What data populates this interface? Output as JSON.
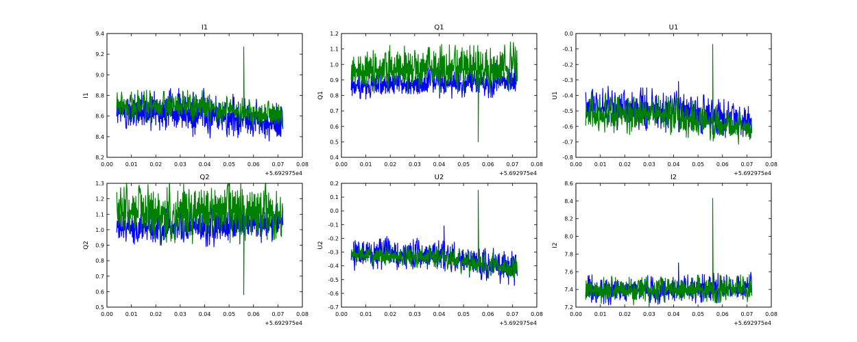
{
  "figure": {
    "background": "#ffffff",
    "series_colors": {
      "blue": "#0000ff",
      "green": "#008000"
    }
  },
  "chart_data": [
    {
      "type": "line",
      "title": "I1",
      "xlabel": "",
      "ylabel": "I1",
      "x_offset_label": "+5.692975e4",
      "xlim": [
        0.0,
        0.08
      ],
      "ylim": [
        8.2,
        9.4
      ],
      "xticks": [
        "0.00",
        "0.01",
        "0.02",
        "0.03",
        "0.04",
        "0.05",
        "0.06",
        "0.07",
        "0.08"
      ],
      "yticks": [
        "8.2",
        "8.4",
        "8.6",
        "8.8",
        "9.0",
        "9.2",
        "9.4"
      ],
      "x_range": [
        0.004,
        0.072
      ],
      "series": [
        {
          "name": "blue",
          "color": "#0000ff",
          "low": [
            8.5,
            8.46,
            8.38
          ],
          "high": [
            8.78,
            8.8,
            8.65
          ],
          "spikes": []
        },
        {
          "name": "green",
          "color": "#008000",
          "low": [
            8.58,
            8.58,
            8.5
          ],
          "high": [
            8.8,
            8.8,
            8.68
          ],
          "spikes": [
            {
              "x": 0.056,
              "y": 9.27
            }
          ]
        }
      ]
    },
    {
      "type": "line",
      "title": "Q1",
      "xlabel": "",
      "ylabel": "Q1",
      "x_offset_label": "+5.692975e4",
      "xlim": [
        0.0,
        0.08
      ],
      "ylim": [
        0.4,
        1.2
      ],
      "xticks": [
        "0.00",
        "0.01",
        "0.02",
        "0.03",
        "0.04",
        "0.05",
        "0.06",
        "0.07",
        "0.08"
      ],
      "yticks": [
        "0.4",
        "0.5",
        "0.6",
        "0.7",
        "0.8",
        "0.9",
        "1.0",
        "1.1",
        "1.2"
      ],
      "x_range": [
        0.004,
        0.072
      ],
      "series": [
        {
          "name": "blue",
          "color": "#0000ff",
          "low": [
            0.8,
            0.8,
            0.82
          ],
          "high": [
            0.93,
            0.95,
            0.98
          ],
          "spikes": [
            {
              "x": 0.042,
              "y": 1.04
            }
          ]
        },
        {
          "name": "green",
          "color": "#008000",
          "low": [
            0.85,
            0.85,
            0.86
          ],
          "high": [
            1.06,
            1.08,
            1.09
          ],
          "spikes": [
            {
              "x": 0.056,
              "y": 0.5
            }
          ]
        }
      ]
    },
    {
      "type": "line",
      "title": "U1",
      "xlabel": "",
      "ylabel": "U1",
      "x_offset_label": "+5.692975e4",
      "xlim": [
        0.0,
        0.08
      ],
      "ylim": [
        -0.8,
        0.0
      ],
      "xticks": [
        "0.00",
        "0.01",
        "0.02",
        "0.03",
        "0.04",
        "0.05",
        "0.06",
        "0.07",
        "0.08"
      ],
      "yticks": [
        "-0.8",
        "-0.7",
        "-0.6",
        "-0.5",
        "-0.4",
        "-0.3",
        "-0.2",
        "-0.1",
        "0.0"
      ],
      "x_range": [
        0.004,
        0.072
      ],
      "series": [
        {
          "name": "blue",
          "color": "#0000ff",
          "low": [
            -0.58,
            -0.6,
            -0.66
          ],
          "high": [
            -0.38,
            -0.4,
            -0.5
          ],
          "spikes": [
            {
              "x": 0.042,
              "y": -0.31
            }
          ]
        },
        {
          "name": "green",
          "color": "#008000",
          "low": [
            -0.62,
            -0.62,
            -0.7
          ],
          "high": [
            -0.42,
            -0.44,
            -0.55
          ],
          "spikes": [
            {
              "x": 0.056,
              "y": -0.07
            }
          ]
        }
      ]
    },
    {
      "type": "line",
      "title": "Q2",
      "xlabel": "",
      "ylabel": "Q2",
      "x_offset_label": "+5.692975e4",
      "xlim": [
        0.0,
        0.08
      ],
      "ylim": [
        0.5,
        1.3
      ],
      "xticks": [
        "0.00",
        "0.01",
        "0.02",
        "0.03",
        "0.04",
        "0.05",
        "0.06",
        "0.07",
        "0.08"
      ],
      "yticks": [
        "0.5",
        "0.6",
        "0.7",
        "0.8",
        "0.9",
        "1.0",
        "1.1",
        "1.2",
        "1.3"
      ],
      "x_range": [
        0.004,
        0.072
      ],
      "series": [
        {
          "name": "blue",
          "color": "#0000ff",
          "low": [
            0.93,
            0.92,
            0.96
          ],
          "high": [
            1.1,
            1.12,
            1.12
          ],
          "spikes": []
        },
        {
          "name": "green",
          "color": "#008000",
          "low": [
            0.96,
            0.96,
            0.98
          ],
          "high": [
            1.24,
            1.26,
            1.25
          ],
          "spikes": [
            {
              "x": 0.056,
              "y": 0.58
            }
          ]
        }
      ]
    },
    {
      "type": "line",
      "title": "U2",
      "xlabel": "",
      "ylabel": "U2",
      "x_offset_label": "+5.692975e4",
      "xlim": [
        0.0,
        0.08
      ],
      "ylim": [
        -0.7,
        0.2
      ],
      "xticks": [
        "0.00",
        "0.01",
        "0.02",
        "0.03",
        "0.04",
        "0.05",
        "0.06",
        "0.07",
        "0.08"
      ],
      "yticks": [
        "-0.7",
        "-0.6",
        "-0.5",
        "-0.4",
        "-0.3",
        "-0.2",
        "-0.1",
        "0.0",
        "0.1",
        "0.2"
      ],
      "x_range": [
        0.004,
        0.072
      ],
      "series": [
        {
          "name": "blue",
          "color": "#0000ff",
          "low": [
            -0.4,
            -0.4,
            -0.52
          ],
          "high": [
            -0.22,
            -0.24,
            -0.34
          ],
          "spikes": [
            {
              "x": 0.042,
              "y": -0.11
            }
          ]
        },
        {
          "name": "green",
          "color": "#008000",
          "low": [
            -0.38,
            -0.4,
            -0.5
          ],
          "high": [
            -0.26,
            -0.28,
            -0.36
          ],
          "spikes": [
            {
              "x": 0.056,
              "y": 0.15
            }
          ]
        }
      ]
    },
    {
      "type": "line",
      "title": "I2",
      "xlabel": "",
      "ylabel": "I2",
      "x_offset_label": "+5.692975e4",
      "xlim": [
        0.0,
        0.08
      ],
      "ylim": [
        7.2,
        8.6
      ],
      "xticks": [
        "0.00",
        "0.01",
        "0.02",
        "0.03",
        "0.04",
        "0.05",
        "0.06",
        "0.07",
        "0.08"
      ],
      "yticks": [
        "7.2",
        "7.4",
        "7.6",
        "7.8",
        "8.0",
        "8.2",
        "8.4",
        "8.6"
      ],
      "x_range": [
        0.004,
        0.072
      ],
      "series": [
        {
          "name": "blue",
          "color": "#0000ff",
          "low": [
            7.27,
            7.27,
            7.3
          ],
          "high": [
            7.52,
            7.5,
            7.55
          ],
          "spikes": [
            {
              "x": 0.042,
              "y": 7.7
            }
          ]
        },
        {
          "name": "green",
          "color": "#008000",
          "low": [
            7.27,
            7.27,
            7.3
          ],
          "high": [
            7.5,
            7.5,
            7.52
          ],
          "spikes": [
            {
              "x": 0.056,
              "y": 8.43
            }
          ]
        }
      ]
    }
  ]
}
